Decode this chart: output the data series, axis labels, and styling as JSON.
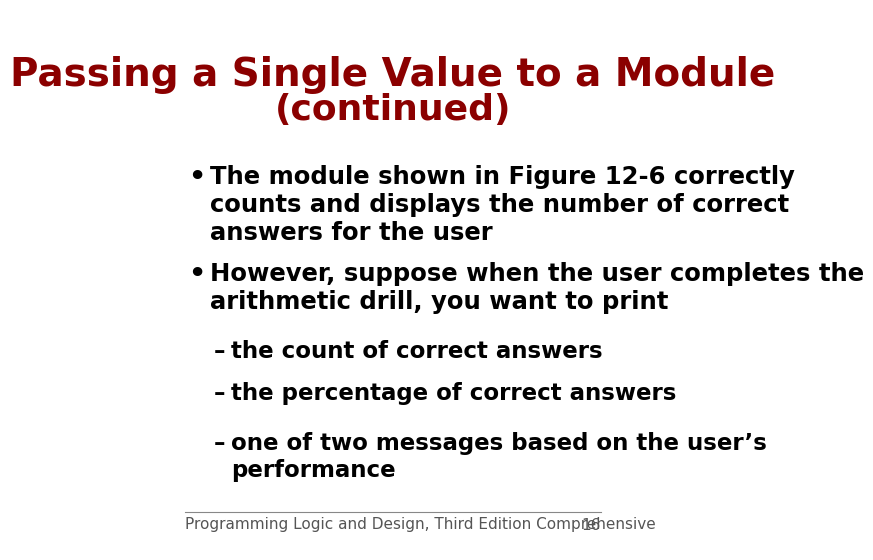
{
  "background_color": "#ffffff",
  "title_line1": "Passing a Single Value to a Module",
  "title_line2": "(continued)",
  "title_color": "#8B0000",
  "title_fontsize": 28,
  "title_fontsize2": 26,
  "body_color": "#000000",
  "body_fontsize": 17.5,
  "sub_fontsize": 16.5,
  "footer_text": "Programming Logic and Design, Third Edition Comprehensive",
  "footer_page": "16",
  "footer_fontsize": 11,
  "bullets": [
    {
      "text": "The module shown in Figure 12-6 correctly\ncounts and displays the number of correct\nanswers for the user",
      "level": 0
    },
    {
      "text": "However, suppose when the user completes the\narithmetic drill, you want to print",
      "level": 0
    },
    {
      "text": "the count of correct answers",
      "level": 1
    },
    {
      "text": "the percentage of correct answers",
      "level": 1
    },
    {
      "text": "one of two messages based on the user’s\nperformance",
      "level": 1
    }
  ]
}
